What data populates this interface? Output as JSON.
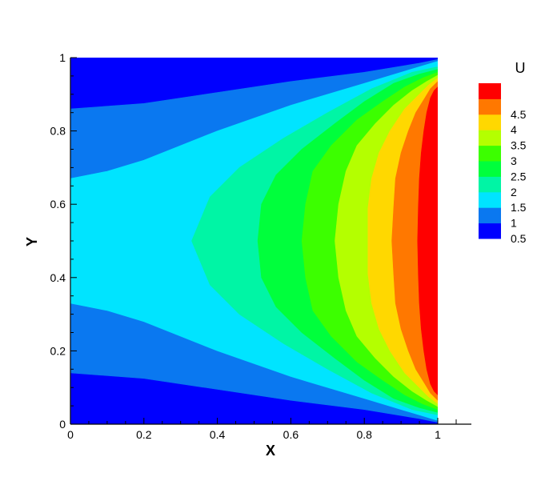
{
  "chart_data": {
    "type": "heatmap",
    "subtype": "filled-contour",
    "variable": "U",
    "xlabel": "X",
    "ylabel": "Y",
    "xlim": [
      0,
      1
    ],
    "ylim": [
      0,
      1
    ],
    "x_ticks": [
      "0",
      "0.2",
      "0.4",
      "0.6",
      "0.8",
      "1"
    ],
    "y_ticks": [
      "0",
      "0.2",
      "0.4",
      "0.6",
      "0.8",
      "1"
    ],
    "grid": false,
    "legend": {
      "title": "U",
      "placement": "right",
      "levels": [
        {
          "label": "0.5",
          "color": "#0000ff"
        },
        {
          "label": "1",
          "color": "#0a78f0"
        },
        {
          "label": "1.5",
          "color": "#00e4ff"
        },
        {
          "label": "2",
          "color": "#00f5a5"
        },
        {
          "label": "2.5",
          "color": "#00ff3c"
        },
        {
          "label": "3",
          "color": "#3cff00"
        },
        {
          "label": "3.5",
          "color": "#b4ff00"
        },
        {
          "label": "4",
          "color": "#ffd800"
        },
        {
          "label": "4.5",
          "color": "#ff7800"
        },
        {
          "label": "",
          "color": "#ff0000"
        }
      ]
    },
    "contour_bands": [
      {
        "level": "1",
        "top": [
          [
            0,
            0.86
          ],
          [
            0.2,
            0.875
          ],
          [
            0.4,
            0.905
          ],
          [
            0.6,
            0.935
          ],
          [
            0.8,
            0.96
          ],
          [
            0.95,
            0.985
          ],
          [
            1,
            0.995
          ]
        ],
        "bottom": [
          [
            0,
            0.14
          ],
          [
            0.2,
            0.125
          ],
          [
            0.4,
            0.095
          ],
          [
            0.6,
            0.065
          ],
          [
            0.8,
            0.04
          ],
          [
            0.95,
            0.015
          ],
          [
            1,
            0.005
          ]
        ]
      },
      {
        "level": "1.5",
        "top": [
          [
            0,
            0.67
          ],
          [
            0.1,
            0.69
          ],
          [
            0.2,
            0.72
          ],
          [
            0.4,
            0.8
          ],
          [
            0.6,
            0.87
          ],
          [
            0.8,
            0.93
          ],
          [
            0.95,
            0.975
          ],
          [
            1,
            0.99
          ]
        ],
        "bottom": [
          [
            0,
            0.33
          ],
          [
            0.1,
            0.31
          ],
          [
            0.2,
            0.28
          ],
          [
            0.4,
            0.2
          ],
          [
            0.6,
            0.13
          ],
          [
            0.8,
            0.07
          ],
          [
            0.95,
            0.025
          ],
          [
            1,
            0.01
          ]
        ]
      },
      {
        "level": "2",
        "front": [
          [
            1,
            0.975
          ],
          [
            0.93,
            0.96
          ],
          [
            0.82,
            0.915
          ],
          [
            0.7,
            0.85
          ],
          [
            0.58,
            0.78
          ],
          [
            0.46,
            0.7
          ],
          [
            0.38,
            0.62
          ],
          [
            0.33,
            0.5
          ]
        ]
      },
      {
        "level": "2.5",
        "front": [
          [
            1,
            0.968
          ],
          [
            0.95,
            0.955
          ],
          [
            0.88,
            0.93
          ],
          [
            0.8,
            0.88
          ],
          [
            0.72,
            0.82
          ],
          [
            0.63,
            0.75
          ],
          [
            0.56,
            0.68
          ],
          [
            0.52,
            0.6
          ],
          [
            0.51,
            0.5
          ]
        ]
      },
      {
        "level": "3",
        "front": [
          [
            1,
            0.96
          ],
          [
            0.96,
            0.945
          ],
          [
            0.91,
            0.92
          ],
          [
            0.85,
            0.88
          ],
          [
            0.78,
            0.83
          ],
          [
            0.71,
            0.76
          ],
          [
            0.66,
            0.69
          ],
          [
            0.64,
            0.6
          ],
          [
            0.63,
            0.5
          ]
        ]
      },
      {
        "level": "3.5",
        "front": [
          [
            1,
            0.952
          ],
          [
            0.97,
            0.935
          ],
          [
            0.93,
            0.91
          ],
          [
            0.88,
            0.87
          ],
          [
            0.83,
            0.82
          ],
          [
            0.78,
            0.76
          ],
          [
            0.75,
            0.69
          ],
          [
            0.73,
            0.6
          ],
          [
            0.72,
            0.5
          ]
        ]
      },
      {
        "level": "4",
        "front": [
          [
            1,
            0.944
          ],
          [
            0.975,
            0.925
          ],
          [
            0.95,
            0.9
          ],
          [
            0.91,
            0.86
          ],
          [
            0.87,
            0.8
          ],
          [
            0.84,
            0.74
          ],
          [
            0.82,
            0.67
          ],
          [
            0.81,
            0.59
          ],
          [
            0.81,
            0.5
          ]
        ]
      },
      {
        "level": "4.5",
        "front": [
          [
            1,
            0.935
          ],
          [
            0.98,
            0.915
          ],
          [
            0.965,
            0.89
          ],
          [
            0.94,
            0.85
          ],
          [
            0.92,
            0.8
          ],
          [
            0.9,
            0.74
          ],
          [
            0.885,
            0.67
          ],
          [
            0.88,
            0.59
          ],
          [
            0.875,
            0.5
          ]
        ]
      },
      {
        "level": "",
        "front": [
          [
            1,
            0.92
          ],
          [
            0.99,
            0.91
          ],
          [
            0.98,
            0.89
          ],
          [
            0.97,
            0.85
          ],
          [
            0.962,
            0.8
          ],
          [
            0.955,
            0.74
          ],
          [
            0.95,
            0.67
          ],
          [
            0.947,
            0.59
          ],
          [
            0.945,
            0.5
          ]
        ]
      }
    ]
  }
}
